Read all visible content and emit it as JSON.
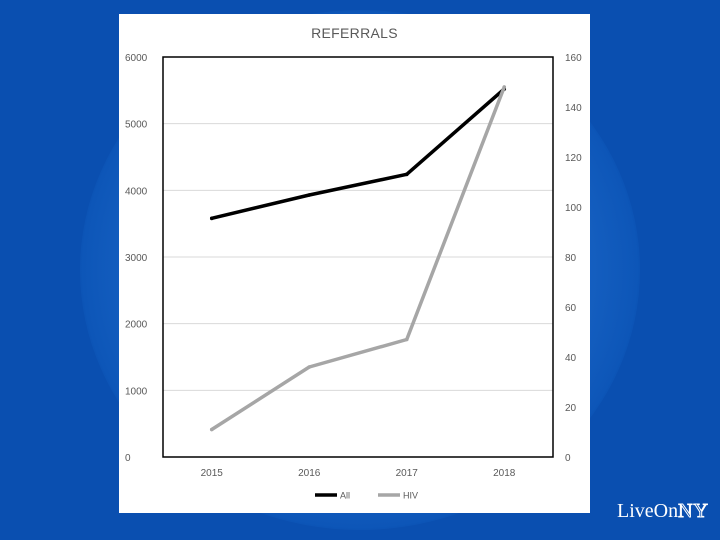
{
  "chart_data": {
    "type": "line",
    "title": "REFERRALS",
    "categories": [
      "2015",
      "2016",
      "2017",
      "2018"
    ],
    "y_left": {
      "min": 0,
      "max": 6000,
      "ticks": [
        0,
        1000,
        2000,
        3000,
        4000,
        5000,
        6000
      ]
    },
    "y_right": {
      "min": 0,
      "max": 160,
      "ticks": [
        0,
        20,
        40,
        60,
        80,
        100,
        120,
        140,
        160
      ]
    },
    "grid": true,
    "legend_position": "bottom",
    "series": [
      {
        "name": "All",
        "axis": "left",
        "color": "#000000",
        "values": [
          3580,
          3930,
          4240,
          5520
        ]
      },
      {
        "name": "HIV",
        "axis": "right",
        "color": "#a6a6a6",
        "values": [
          11,
          36,
          47,
          148
        ]
      }
    ]
  },
  "branding": {
    "logo_prefix": "LiveOn",
    "logo_suffix": "NY"
  },
  "colors": {
    "background": "#0a4fb0",
    "card": "#ffffff",
    "grid": "#d9d9d9"
  }
}
